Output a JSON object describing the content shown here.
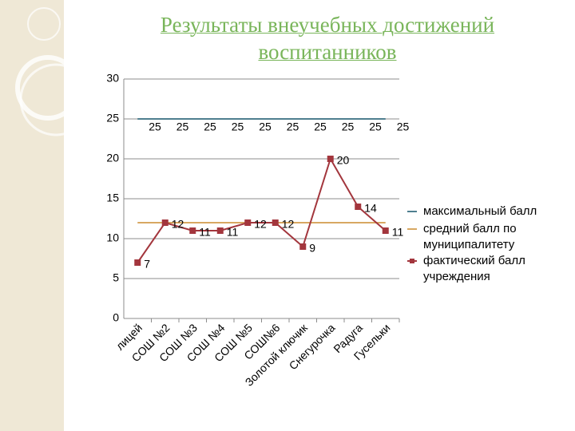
{
  "chart_data": {
    "type": "line",
    "title": "Результаты внеучебных достижений воспитанников",
    "categories": [
      "лицей",
      "СОШ №2",
      "СОШ №3",
      "СОШ №4",
      "СОШ №5",
      "СОШ№6",
      "Золотой ключик",
      "Снегурочка",
      "Радуга",
      "Гусельки"
    ],
    "series": [
      {
        "name": "максимальный балл",
        "color": "#4f7f8f",
        "values": [
          25,
          25,
          25,
          25,
          25,
          25,
          25,
          25,
          25,
          25
        ],
        "labels": true,
        "marker": false
      },
      {
        "name": "средний балл по муниципалитету",
        "color": "#d8a862",
        "values": [
          12,
          12,
          12,
          12,
          12,
          12,
          12,
          12,
          12,
          12
        ],
        "labels": false,
        "marker": false
      },
      {
        "name": "фактический балл учреждения",
        "color": "#a3363d",
        "values": [
          7,
          12,
          11,
          11,
          12,
          12,
          9,
          20,
          14,
          11
        ],
        "labels": true,
        "marker": true
      }
    ],
    "ylim": [
      0,
      30
    ],
    "yticks": [
      0,
      5,
      10,
      15,
      20,
      25,
      30
    ],
    "grid": true,
    "legend": "right"
  }
}
